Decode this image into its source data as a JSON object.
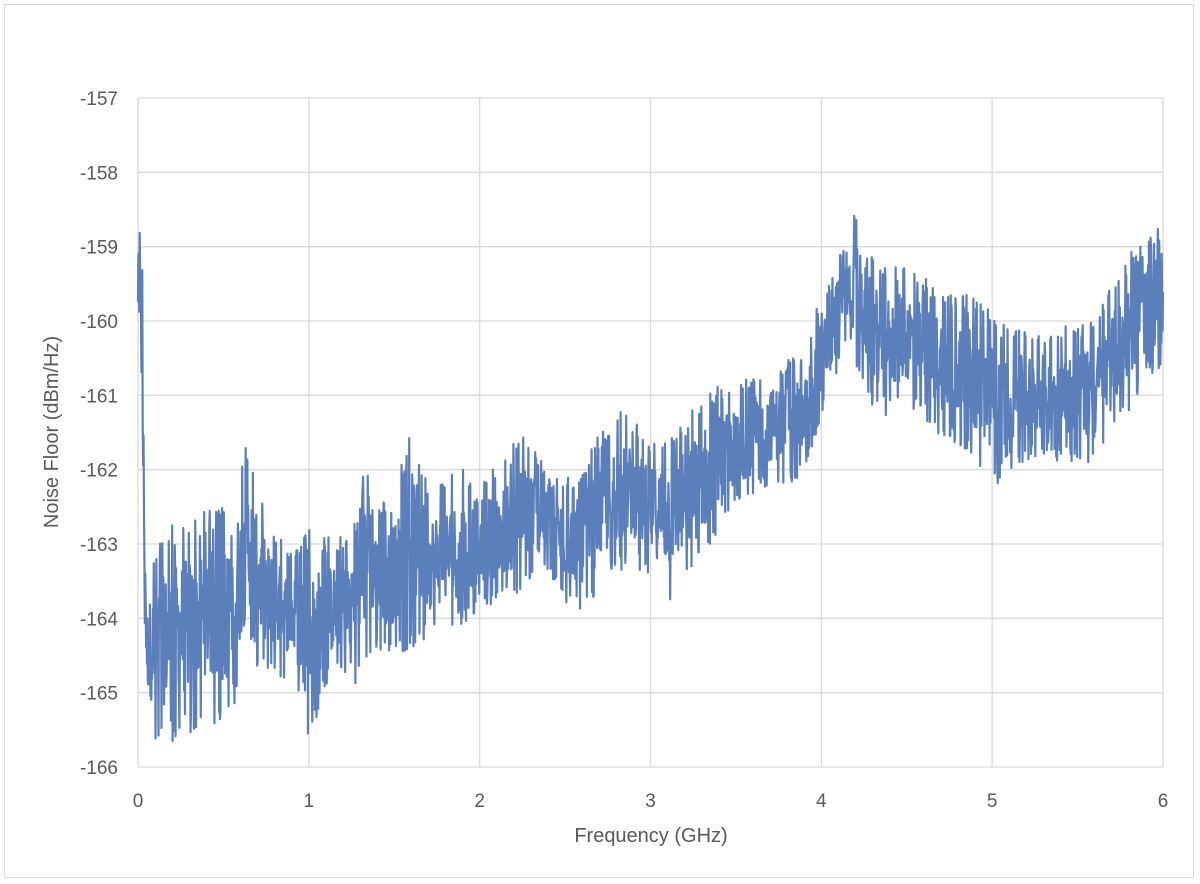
{
  "chart_data": {
    "type": "line",
    "title": "",
    "xlabel": "Frequency (GHz)",
    "ylabel": "Noise Floor (dBm/Hz)",
    "xlim": [
      0,
      6
    ],
    "ylim": [
      -166,
      -157
    ],
    "x_ticks": [
      "0",
      "1",
      "2",
      "3",
      "4",
      "5",
      "6"
    ],
    "y_ticks": [
      "-157",
      "-158",
      "-159",
      "-160",
      "-161",
      "-162",
      "-163",
      "-164",
      "-165",
      "-166"
    ],
    "grid": true,
    "legend": "none",
    "series_color": "#5b7fba",
    "series": [
      {
        "name": "",
        "envelope": {
          "x": [
            0.0,
            0.01,
            0.02,
            0.03,
            0.05,
            0.1,
            0.2,
            0.3,
            0.4,
            0.5,
            0.6,
            0.65,
            0.7,
            0.8,
            0.9,
            1.0,
            1.1,
            1.2,
            1.3,
            1.35,
            1.4,
            1.5,
            1.6,
            1.7,
            1.8,
            1.9,
            2.0,
            2.1,
            2.2,
            2.3,
            2.4,
            2.5,
            2.6,
            2.7,
            2.8,
            2.9,
            3.0,
            3.1,
            3.2,
            3.3,
            3.4,
            3.5,
            3.6,
            3.7,
            3.8,
            3.9,
            4.0,
            4.05,
            4.1,
            4.15,
            4.2,
            4.3,
            4.4,
            4.5,
            4.6,
            4.7,
            4.8,
            4.9,
            5.0,
            5.1,
            5.2,
            5.3,
            5.4,
            5.5,
            5.6,
            5.7,
            5.8,
            5.9,
            6.0
          ],
          "upper": [
            -159.0,
            -158.3,
            -157.8,
            -160.5,
            -163.5,
            -163.0,
            -162.7,
            -162.6,
            -162.5,
            -162.5,
            -161.9,
            -161.5,
            -162.2,
            -162.8,
            -163.1,
            -162.8,
            -162.9,
            -162.9,
            -162.5,
            -161.2,
            -162.5,
            -162.3,
            -161.4,
            -162.2,
            -162.1,
            -162.0,
            -162.0,
            -162.0,
            -161.6,
            -161.5,
            -162.1,
            -162.1,
            -162.0,
            -161.5,
            -161.2,
            -161.3,
            -161.6,
            -161.4,
            -161.3,
            -161.0,
            -160.8,
            -160.9,
            -160.7,
            -160.6,
            -160.5,
            -160.5,
            -159.5,
            -159.5,
            -159.0,
            -159.0,
            -158.5,
            -159.1,
            -159.3,
            -159.2,
            -159.4,
            -159.5,
            -159.6,
            -159.7,
            -159.8,
            -160.1,
            -160.1,
            -160.1,
            -160.1,
            -160.0,
            -160.0,
            -159.5,
            -159.1,
            -158.9,
            -158.6
          ],
          "lower": [
            -160.2,
            -160.0,
            -161.0,
            -163.0,
            -165.3,
            -165.8,
            -165.7,
            -165.6,
            -165.3,
            -165.6,
            -164.9,
            -164.4,
            -164.7,
            -164.8,
            -164.8,
            -165.7,
            -164.9,
            -164.8,
            -164.9,
            -164.5,
            -164.5,
            -164.5,
            -164.4,
            -164.3,
            -164.2,
            -164.1,
            -163.9,
            -163.8,
            -163.8,
            -163.5,
            -163.4,
            -163.8,
            -163.9,
            -163.7,
            -163.4,
            -163.3,
            -163.5,
            -163.8,
            -163.6,
            -163.3,
            -163.0,
            -162.5,
            -162.4,
            -162.2,
            -162.2,
            -162.1,
            -161.3,
            -161.2,
            -160.6,
            -160.2,
            -160.6,
            -161.2,
            -161.3,
            -161.2,
            -161.3,
            -161.6,
            -161.7,
            -161.9,
            -162.3,
            -162.0,
            -161.9,
            -161.8,
            -161.9,
            -161.9,
            -162.0,
            -161.6,
            -161.2,
            -160.8,
            -160.7
          ]
        }
      }
    ]
  }
}
